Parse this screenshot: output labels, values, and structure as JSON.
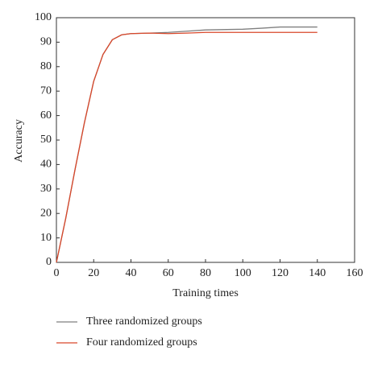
{
  "chart_data": {
    "type": "line",
    "x_label": "Training times",
    "y_label": "Accuracy",
    "x": [
      0,
      5,
      10,
      15,
      20,
      25,
      30,
      35,
      40,
      50,
      60,
      70,
      80,
      100,
      110,
      120,
      140
    ],
    "series": [
      {
        "name": "Three randomized groups",
        "color": "#7f7f7f",
        "values": [
          0,
          18,
          38,
          57,
          74,
          85,
          91,
          93,
          93.5,
          93.7,
          94,
          94.5,
          95,
          95.3,
          95.7,
          96.2,
          96.2
        ]
      },
      {
        "name": "Four randomized groups",
        "color": "#d9482b",
        "values": [
          0,
          18,
          38,
          57,
          74,
          85,
          91,
          93,
          93.5,
          93.7,
          93.5,
          93.7,
          94,
          94,
          94,
          94,
          94
        ]
      }
    ],
    "xlim": [
      0,
      160
    ],
    "xticks": [
      0,
      20,
      40,
      60,
      80,
      100,
      120,
      140,
      160
    ],
    "ylim": [
      0,
      100
    ],
    "yticks": [
      0,
      10,
      20,
      30,
      40,
      50,
      60,
      70,
      80,
      90,
      100
    ]
  }
}
